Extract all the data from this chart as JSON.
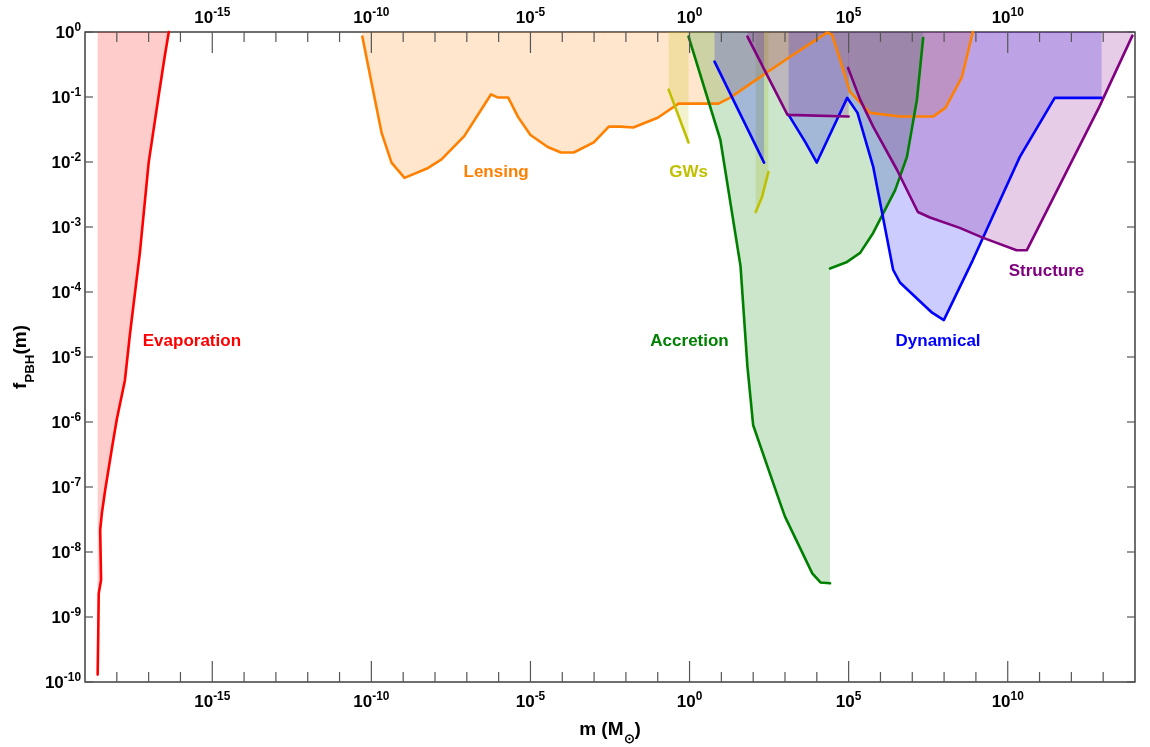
{
  "chart_data": {
    "type": "line",
    "xlabel": "m (M$_{⊙}$)",
    "ylabel": "f$_{PBH}$(m)",
    "log": "xy",
    "grid": false,
    "legend": false,
    "xlim": [
      1e-19,
      100000000000000.0
    ],
    "ylim": [
      1e-10,
      1
    ],
    "xticks": [
      {
        "value": 1e-18,
        "label": null
      },
      {
        "value": 1e-17,
        "label": null
      },
      {
        "value": 1e-16,
        "label": null
      },
      {
        "value": 1e-15,
        "label": "10$^{-15}$"
      },
      {
        "value": 1e-14,
        "label": null
      },
      {
        "value": 1e-13,
        "label": null
      },
      {
        "value": 1e-12,
        "label": null
      },
      {
        "value": 1e-11,
        "label": null
      },
      {
        "value": 1e-10,
        "label": "10$^{-10}$"
      },
      {
        "value": 1e-09,
        "label": null
      },
      {
        "value": 1e-08,
        "label": null
      },
      {
        "value": 1e-07,
        "label": null
      },
      {
        "value": 1e-06,
        "label": null
      },
      {
        "value": 1e-05,
        "label": "10$^{-5}$"
      },
      {
        "value": 0.0001,
        "label": null
      },
      {
        "value": 0.001,
        "label": null
      },
      {
        "value": 0.01,
        "label": null
      },
      {
        "value": 0.1,
        "label": null
      },
      {
        "value": 1,
        "label": "10$^{0}$"
      },
      {
        "value": 10,
        "label": null
      },
      {
        "value": 100,
        "label": null
      },
      {
        "value": 1000,
        "label": null
      },
      {
        "value": 10000,
        "label": null
      },
      {
        "value": 100000.0,
        "label": "10$^{5}$"
      },
      {
        "value": 1000000.0,
        "label": null
      },
      {
        "value": 10000000.0,
        "label": null
      },
      {
        "value": 100000000.0,
        "label": null
      },
      {
        "value": 1000000000.0,
        "label": null
      },
      {
        "value": 10000000000.0,
        "label": "10$^{10}$"
      },
      {
        "value": 100000000000.0,
        "label": null
      },
      {
        "value": 1000000000000.0,
        "label": null
      },
      {
        "value": 10000000000000.0,
        "label": null
      }
    ],
    "yticks": [
      {
        "value": 1e-10,
        "label": "10$^{-10}$"
      },
      {
        "value": 1e-09,
        "label": "10$^{-9}$"
      },
      {
        "value": 1e-08,
        "label": "10$^{-8}$"
      },
      {
        "value": 1e-07,
        "label": "10$^{-7}$"
      },
      {
        "value": 1e-06,
        "label": "10$^{-6}$"
      },
      {
        "value": 1e-05,
        "label": "10$^{-5}$"
      },
      {
        "value": 0.0001,
        "label": "10$^{-4}$"
      },
      {
        "value": 0.001,
        "label": "10$^{-3}$"
      },
      {
        "value": 0.01,
        "label": "10$^{-2}$"
      },
      {
        "value": 0.1,
        "label": "10$^{-1}$"
      },
      {
        "value": 1,
        "label": "10$^{0}$"
      }
    ],
    "marker": "none",
    "line_style": "solid",
    "series": [
      {
        "name": "Evaporation",
        "color": "#ff0000",
        "x": [
          2.5e-19,
          2.6e-19,
          2.7e-19,
          3.2e-19,
          3e-19,
          3.4e-19,
          4.3e-19,
          7.1e-19,
          1e-18,
          1.8e-18,
          2.6e-18,
          5.3e-18,
          1e-17,
          2.1e-17,
          3.2e-17,
          4.3e-17
        ],
        "values": [
          1.3e-10,
          4.9e-10,
          2.3e-09,
          3.7e-09,
          2.2e-08,
          4e-08,
          8.9e-08,
          4.1e-07,
          1.1e-06,
          4.4e-06,
          2.3e-05,
          0.0004,
          0.0097,
          0.11,
          0.42,
          1
        ],
        "lower": [
          1.3e-10,
          4.9e-10,
          2.3e-09,
          3.7e-09,
          2.2e-08,
          4e-08,
          8.9e-08,
          4.1e-07,
          1.1e-06,
          4.4e-06,
          2.3e-05,
          0.0004,
          0.0097,
          0.11,
          0.42,
          1
        ],
        "upper": [
          1,
          1,
          1,
          1,
          1,
          1,
          1,
          1,
          1,
          1,
          1,
          1,
          1,
          1,
          1,
          1
        ]
      },
      {
        "name": "Lensing",
        "color": "#ff8000",
        "x": [
          5.2e-11,
          1e-10,
          2.1e-10,
          4.3e-10,
          1.1e-09,
          6.1e-09,
          1.6e-08,
          8.3e-08,
          5.8e-07,
          9.6e-07,
          2e-06,
          4.1e-06,
          1e-05,
          3.5e-05,
          9.1e-05,
          0.00023,
          0.00098,
          0.0029,
          0.0069,
          0.017,
          0.1,
          0.45,
          8.1,
          19,
          210,
          1500,
          21000,
          30000,
          54000,
          110000,
          470000,
          4100000.0,
          45000000.0,
          110000000.0,
          360000000.0,
          800000000.0
        ],
        "values": [
          0.85,
          0.17,
          0.028,
          0.0098,
          0.0057,
          0.0081,
          0.011,
          0.025,
          0.11,
          0.098,
          0.098,
          0.049,
          0.026,
          0.017,
          0.014,
          0.014,
          0.02,
          0.035,
          0.035,
          0.034,
          0.048,
          0.079,
          0.079,
          0.098,
          0.22,
          0.42,
          0.98,
          0.91,
          0.37,
          0.12,
          0.057,
          0.05,
          0.05,
          0.068,
          0.2,
          1
        ],
        "lower": [
          0.85,
          0.17,
          0.028,
          0.0098,
          0.0057,
          0.0081,
          0.011,
          0.025,
          0.11,
          0.098,
          0.098,
          0.049,
          0.026,
          0.017,
          0.014,
          0.014,
          0.02,
          0.035,
          0.035,
          0.034,
          0.048,
          0.079,
          0.079,
          0.098,
          0.22,
          0.42,
          0.98,
          0.91,
          0.37,
          0.12,
          0.057,
          0.05,
          0.05,
          0.068,
          0.2,
          1
        ],
        "upper": [
          1,
          1,
          1,
          1,
          1,
          1,
          1,
          1,
          1,
          1,
          1,
          1,
          1,
          1,
          1,
          1,
          1,
          1,
          1,
          1,
          1,
          1,
          1,
          1,
          1,
          1,
          1,
          1,
          1,
          1,
          1,
          1,
          1,
          1,
          1,
          1
        ]
      },
      {
        "name": "GWs",
        "color": "#c0c000",
        "x": [
          0.22,
          0.93
        ],
        "values": [
          0.13,
          0.02
        ],
        "lower": [
          0.13,
          0.02
        ],
        "upper": [
          1,
          1
        ]
      },
      {
        "color": "#c0c000",
        "x": [
          120,
          190,
          300
        ],
        "values": [
          0.0017,
          0.0029,
          0.007
        ],
        "lower": [
          0.0017,
          0.0029,
          0.007
        ],
        "upper": [
          1,
          1,
          1
        ]
      },
      {
        "name": "Accretion",
        "color": "#008000",
        "x": [
          0.93,
          9.3,
          40,
          66,
          100,
          710,
          1000,
          7200,
          13000,
          26000
        ],
        "values": [
          0.85,
          0.022,
          0.00025,
          7.1e-06,
          8.9e-07,
          5.6e-08,
          3.5e-08,
          4.7e-09,
          3.4e-09,
          3.3e-09
        ],
        "lower": [
          0.85,
          0.022,
          0.00025,
          7.1e-06,
          8.9e-07,
          5.6e-08,
          3.5e-08,
          4.7e-09,
          3.4e-09,
          3.3e-09
        ],
        "upper": [
          1,
          1,
          1,
          1,
          1,
          1,
          1,
          1,
          1,
          1
        ]
      },
      {
        "color": "#008000",
        "x": [
          26000,
          89000,
          230000,
          590000,
          2900000.0,
          6800000.0,
          14000000.0,
          22000000.0
        ],
        "values": [
          0.00023,
          0.00029,
          0.0004,
          0.00081,
          0.0037,
          0.012,
          0.091,
          0.81
        ],
        "lower": [
          0.00023,
          0.00029,
          0.0004,
          0.00081,
          0.0037,
          0.012,
          0.091,
          0.81
        ],
        "upper": [
          1,
          1,
          1,
          1,
          1,
          1,
          1,
          1
        ]
      },
      {
        "name": "Dynamical",
        "color": "#0000ff",
        "x": [
          1300,
          4400,
          10000,
          90000,
          190000,
          590000,
          2500000.0,
          4100000.0,
          42000000.0,
          98000000.0,
          800000000.0,
          24000000000.0,
          300000000000.0,
          8900000000000.0
        ],
        "values": [
          0.053,
          0.02,
          0.0098,
          0.097,
          0.057,
          0.0085,
          0.00022,
          0.00014,
          4.8e-05,
          3.7e-05,
          0.00031,
          0.012,
          0.097,
          0.097
        ],
        "lower": [
          0.053,
          0.02,
          0.0098,
          0.097,
          0.057,
          0.0085,
          0.00022,
          0.00014,
          4.8e-05,
          3.7e-05,
          0.00031,
          0.012,
          0.097,
          0.097
        ],
        "upper": [
          1,
          1,
          1,
          1,
          1,
          1,
          1,
          1,
          1,
          1,
          1,
          1,
          1,
          1
        ]
      },
      {
        "color": "#0000ff",
        "x": [
          6.1,
          220
        ],
        "values": [
          0.35,
          0.0098
        ],
        "lower": [
          0.35,
          0.0098
        ],
        "upper": [
          1,
          1
        ]
      },
      {
        "color": "#800080",
        "x": [
          66,
          1200,
          100000
        ],
        "values": [
          0.85,
          0.053,
          0.05
        ],
        "lower": [
          0.85,
          0.053,
          0.05
        ],
        "upper": [
          1,
          1,
          1
        ]
      },
      {
        "name": "Structure",
        "color": "#800080",
        "x": [
          96000,
          230000,
          590000,
          3300000.0,
          15000000.0,
          36000000.0,
          310000000.0,
          1700000000.0,
          19000000000.0,
          40000000000.0,
          7600000000000.0,
          83000000000000.0
        ],
        "values": [
          0.28,
          0.091,
          0.035,
          0.0076,
          0.0017,
          0.0014,
          0.00097,
          0.00068,
          0.00044,
          0.00044,
          0.071,
          0.88
        ],
        "lower": [
          0.28,
          0.091,
          0.035,
          0.0076,
          0.0017,
          0.0014,
          0.00097,
          0.00068,
          0.00044,
          0.00044,
          0.071,
          0.88
        ],
        "upper": [
          1,
          1,
          1,
          1,
          1,
          1,
          1,
          1,
          1,
          1,
          1,
          1
        ]
      }
    ]
  }
}
